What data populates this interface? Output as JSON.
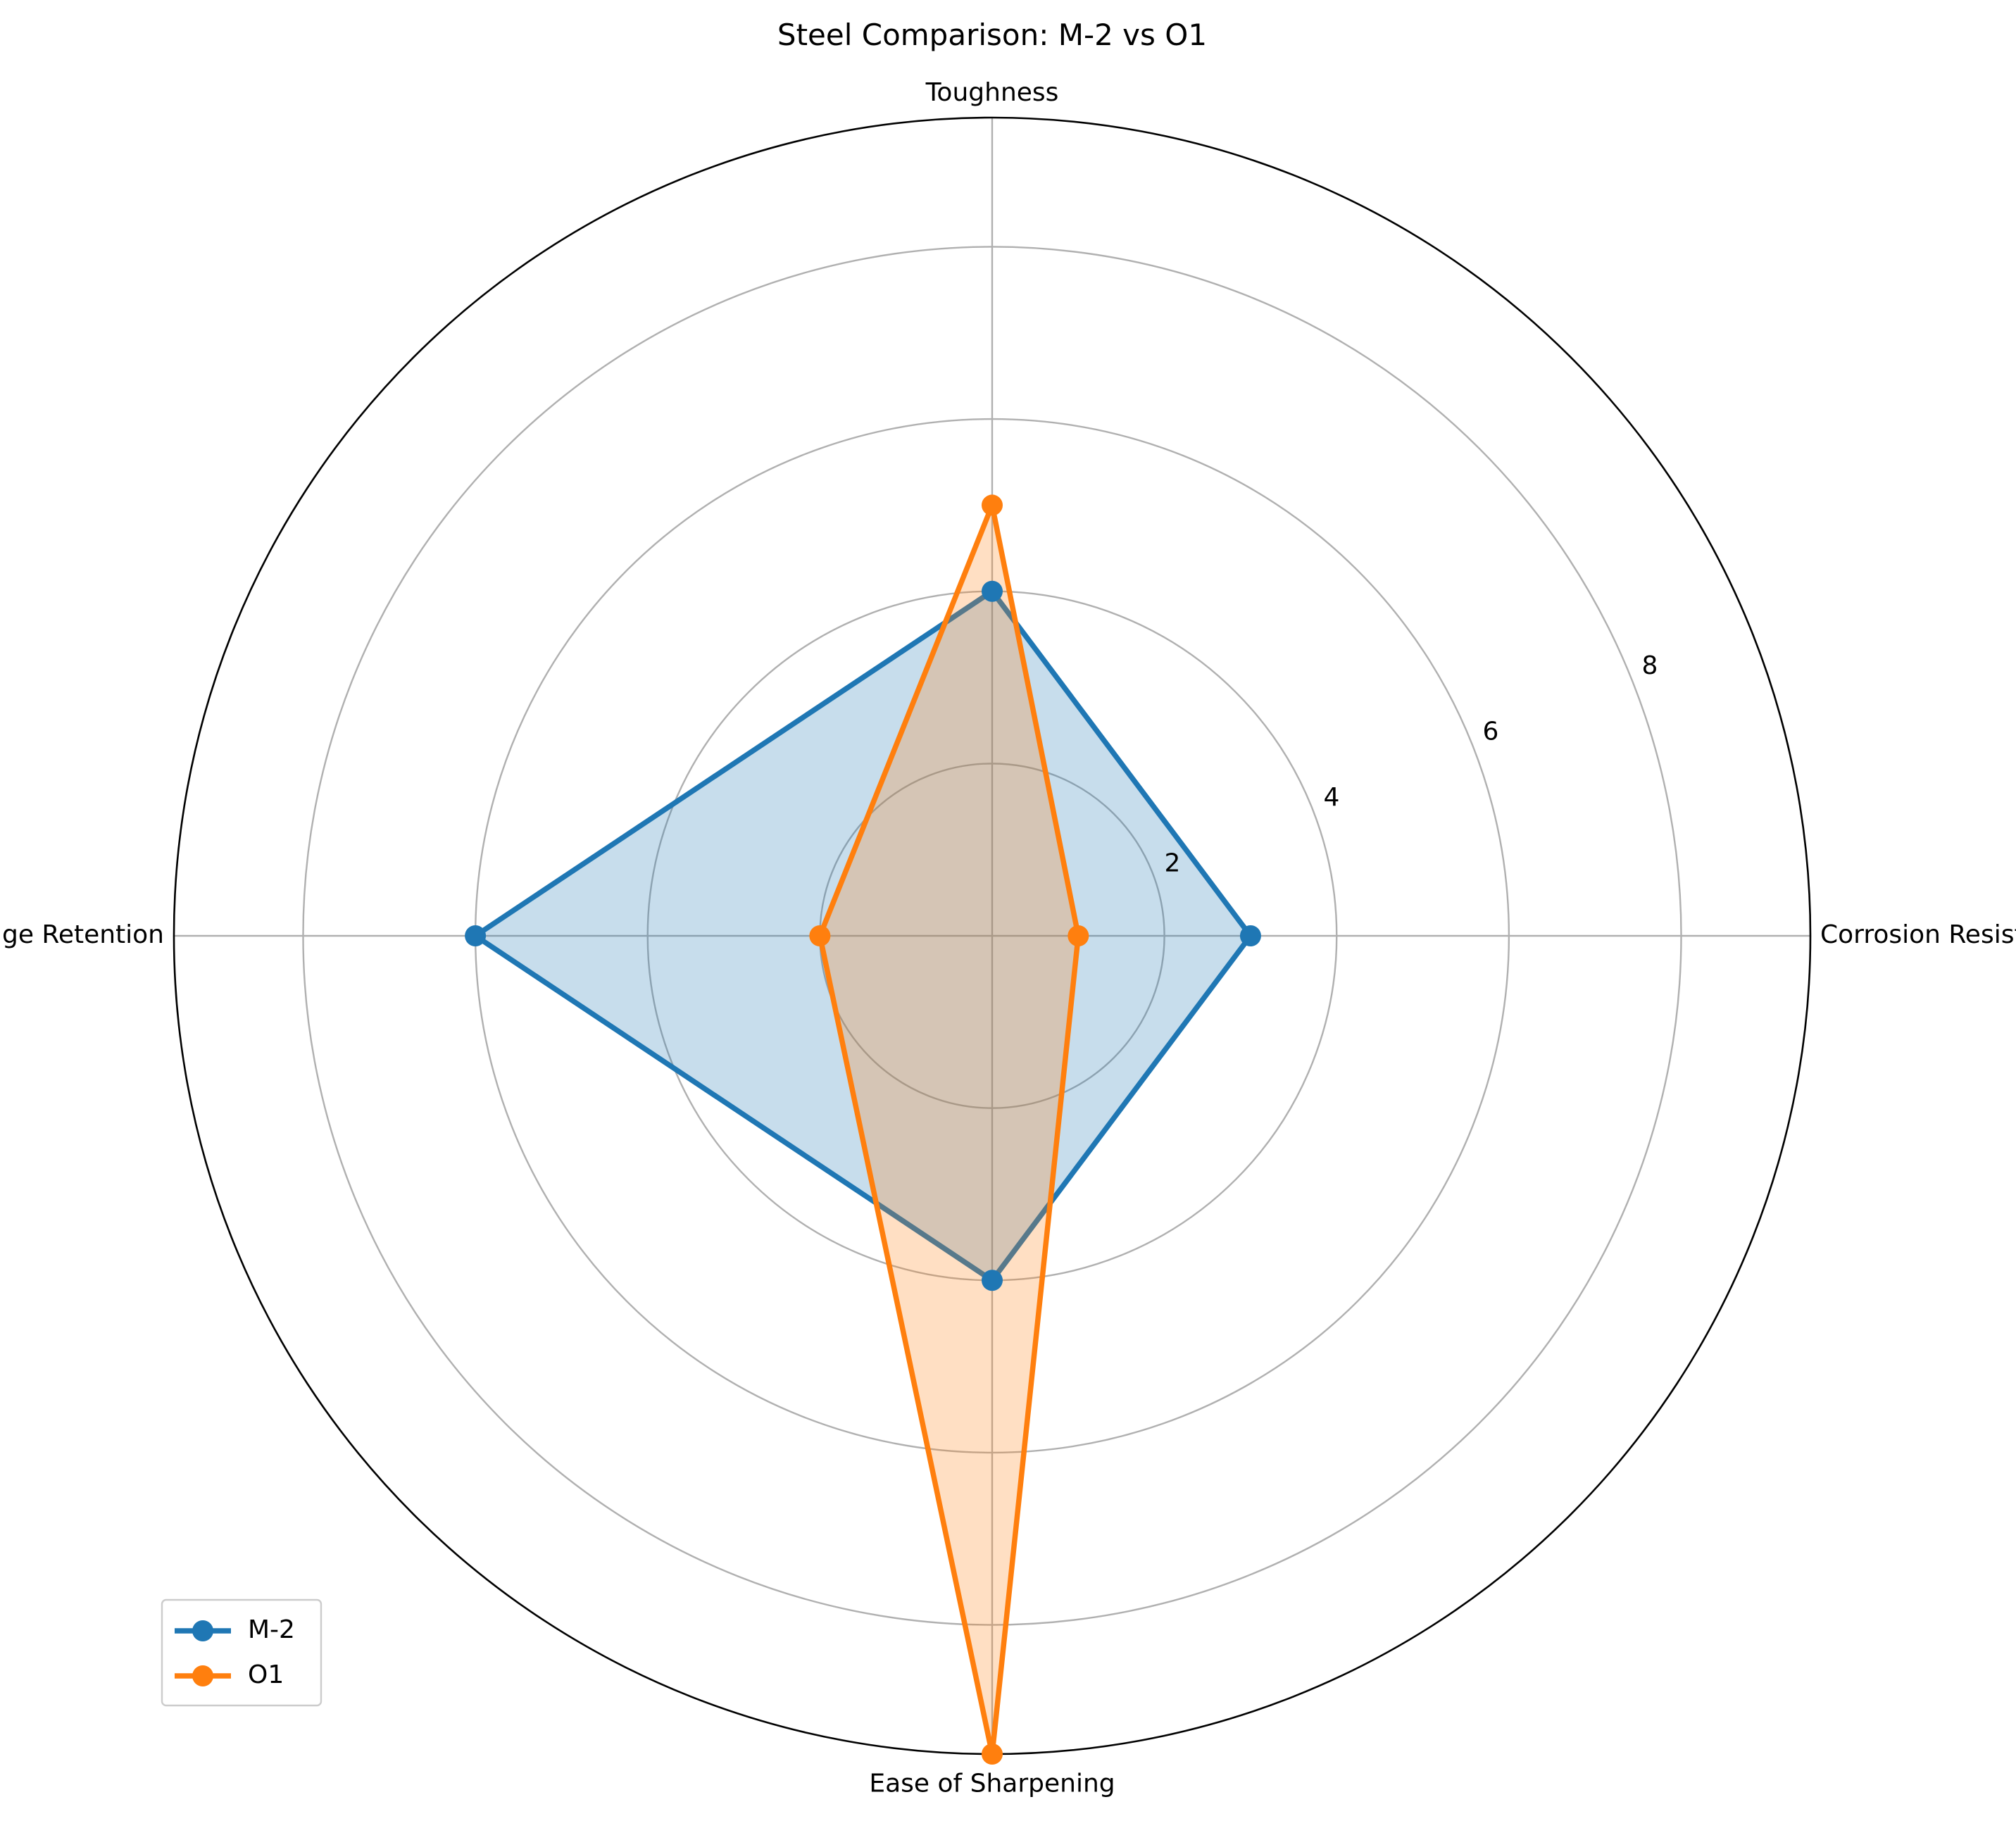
{
  "chart_data": {
    "type": "radar",
    "title": "Steel Comparison: M-2 vs O1",
    "categories": [
      "Corrosion Resistance",
      "Toughness",
      "Edge Retention",
      "Ease of Sharpening"
    ],
    "series": [
      {
        "name": "M-2",
        "values": [
          3,
          4,
          6,
          4
        ],
        "color": "#1f77b4",
        "fill": "#c6dbeb"
      },
      {
        "name": "O1",
        "values": [
          1,
          5,
          2,
          9.5
        ],
        "color": "#ff7f0e",
        "fill": "#ffdbbd"
      }
    ],
    "rlim": [
      0,
      9.5
    ],
    "r_ticks": [
      2,
      4,
      6,
      8
    ],
    "r_tick_labels": [
      "2",
      "4",
      "6",
      "8"
    ],
    "grid": true,
    "legend_position": "lower-left"
  }
}
